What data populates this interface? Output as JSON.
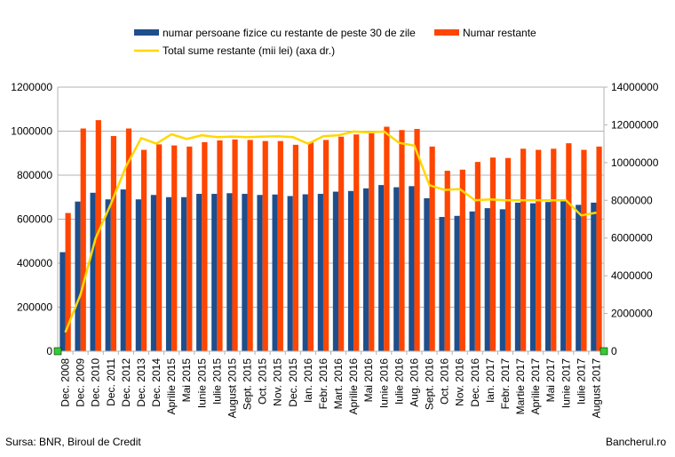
{
  "chart_data": {
    "type": "bar",
    "categories": [
      "Dec. 2008",
      "Dec. 2009",
      "Dec. 2010",
      "Dec. 2011",
      "Dec. 2012",
      "Dec. 2013",
      "Dec. 2014",
      "Aprilie 2015",
      "Mai 2015",
      "Iunie 2015",
      "Iulie 2015",
      "August 2015",
      "Sept. 2015",
      "Oct. 2015",
      "Nov. 2015",
      "Dec. 2015",
      "Ian. 2016",
      "Febr. 2016",
      "Mart. 2016",
      "Aprilie 2016",
      "Mai 2016",
      "Iunie 2016",
      "Iulie 2016",
      "Aug. 2016",
      "Sept. 2016",
      "Oct. 2016",
      "Nov. 2016",
      "Dec. 2016",
      "Ian. 2017",
      "Febr. 2017",
      "Martie 2017",
      "Aprilie 2017",
      "Mai 2017",
      "Iunie 2017",
      "Iulie 2017",
      "August 2017"
    ],
    "series": [
      {
        "name": "numar persoane fizice cu restante de peste 30 de zile",
        "type": "bar",
        "axis": "left",
        "color": "#1f4e8c",
        "values": [
          450000,
          680000,
          720000,
          690000,
          735000,
          690000,
          710000,
          700000,
          700000,
          715000,
          715000,
          718000,
          715000,
          710000,
          712000,
          705000,
          713000,
          715000,
          725000,
          728000,
          740000,
          755000,
          745000,
          750000,
          695000,
          610000,
          615000,
          635000,
          650000,
          645000,
          675000,
          672000,
          678000,
          685000,
          665000,
          675000
        ]
      },
      {
        "name": "Numar restante",
        "type": "bar",
        "axis": "left",
        "color": "#ff4500",
        "values": [
          628000,
          1012000,
          1050000,
          978000,
          1012000,
          915000,
          940000,
          935000,
          930000,
          950000,
          958000,
          962000,
          960000,
          955000,
          955000,
          938000,
          950000,
          960000,
          975000,
          985000,
          990000,
          1020000,
          1005000,
          1010000,
          930000,
          820000,
          825000,
          860000,
          880000,
          878000,
          920000,
          915000,
          920000,
          945000,
          915000,
          930000
        ]
      },
      {
        "name": "Total sume restante (mii lei) (axa dr.)",
        "type": "line",
        "axis": "right",
        "color": "#ffd700",
        "values": [
          1000000,
          3000000,
          6000000,
          7800000,
          9800000,
          11300000,
          11000000,
          11500000,
          11250000,
          11450000,
          11350000,
          11380000,
          11350000,
          11380000,
          11400000,
          11350000,
          11000000,
          11400000,
          11450000,
          11650000,
          11600000,
          11650000,
          11050000,
          10900000,
          8800000,
          8550000,
          8600000,
          8000000,
          8050000,
          8000000,
          8000000,
          8000000,
          8000000,
          8000000,
          7200000,
          7350000
        ]
      }
    ],
    "ylim": [
      0,
      1200000
    ],
    "yticks": [
      "0",
      "200000",
      "400000",
      "600000",
      "800000",
      "1000000",
      "1200000"
    ],
    "y2lim": [
      0,
      14000000
    ],
    "y2ticks": [
      "0",
      "2000000",
      "4000000",
      "6000000",
      "8000000",
      "10000000",
      "12000000",
      "14000000"
    ],
    "grid": true,
    "legend_position": "top",
    "colors": {
      "grid": "#b3b3b3",
      "axis": "#b3b3b3",
      "marker": "#33cc33"
    }
  },
  "footer": {
    "source": "Sursa: BNR, Biroul de Credit",
    "site": "Bancherul.ro"
  }
}
